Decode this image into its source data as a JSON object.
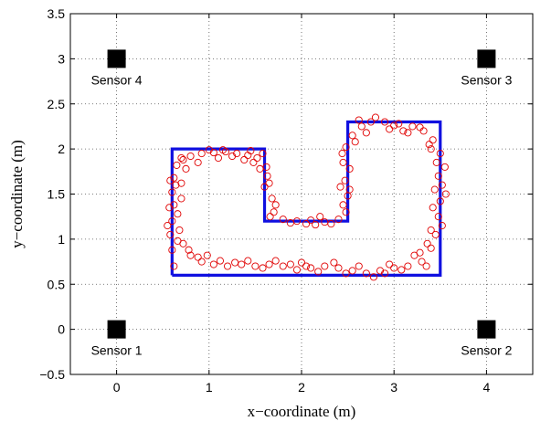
{
  "chart_data": {
    "type": "scatter",
    "title": "",
    "xlabel": "x−coordinate (m)",
    "ylabel": "y−coordinate (m)",
    "xlim": [
      -0.5,
      4.5
    ],
    "ylim": [
      -0.5,
      3.5
    ],
    "xticks": [
      0,
      1,
      2,
      3,
      4
    ],
    "yticks": [
      -0.5,
      0,
      0.5,
      1,
      1.5,
      2,
      2.5,
      3,
      3.5
    ],
    "xtick_labels": [
      "0",
      "1",
      "2",
      "3",
      "4"
    ],
    "ytick_labels": [
      "−0.5",
      "0",
      "0.5",
      "1",
      "1.5",
      "2",
      "2.5",
      "3",
      "3.5"
    ],
    "grid": true,
    "sensors": [
      {
        "label": "Sensor 1",
        "x": 0,
        "y": 0
      },
      {
        "label": "Sensor 2",
        "x": 4,
        "y": 0
      },
      {
        "label": "Sensor 3",
        "x": 4,
        "y": 3
      },
      {
        "label": "Sensor 4",
        "x": 0,
        "y": 3
      }
    ],
    "path": {
      "color": "#1010e0",
      "points": [
        [
          0.6,
          0.6
        ],
        [
          3.5,
          0.6
        ],
        [
          3.5,
          2.3
        ],
        [
          2.5,
          2.3
        ],
        [
          2.5,
          1.2
        ],
        [
          1.6,
          1.2
        ],
        [
          1.6,
          2.0
        ],
        [
          0.6,
          2.0
        ],
        [
          0.6,
          0.6
        ]
      ]
    },
    "estimates": {
      "color": "#e00000",
      "points": [
        [
          0.62,
          0.7
        ],
        [
          0.6,
          0.88
        ],
        [
          0.58,
          1.05
        ],
        [
          0.6,
          1.2
        ],
        [
          0.57,
          1.35
        ],
        [
          0.6,
          1.52
        ],
        [
          0.62,
          1.68
        ],
        [
          0.65,
          1.82
        ],
        [
          0.72,
          1.88
        ],
        [
          0.8,
          1.92
        ],
        [
          0.92,
          1.95
        ],
        [
          1.05,
          1.96
        ],
        [
          1.18,
          1.97
        ],
        [
          1.3,
          1.95
        ],
        [
          1.42,
          1.93
        ],
        [
          1.52,
          1.9
        ],
        [
          1.58,
          1.95
        ],
        [
          1.62,
          1.8
        ],
        [
          1.65,
          1.62
        ],
        [
          1.68,
          1.45
        ],
        [
          1.7,
          1.3
        ],
        [
          1.8,
          1.22
        ],
        [
          1.95,
          1.2
        ],
        [
          2.1,
          1.21
        ],
        [
          2.25,
          1.19
        ],
        [
          2.4,
          1.22
        ],
        [
          2.48,
          1.3
        ],
        [
          2.5,
          1.48
        ],
        [
          2.47,
          1.65
        ],
        [
          2.45,
          1.85
        ],
        [
          2.48,
          2.02
        ],
        [
          2.55,
          2.15
        ],
        [
          2.65,
          2.25
        ],
        [
          2.75,
          2.3
        ],
        [
          2.9,
          2.3
        ],
        [
          3.05,
          2.28
        ],
        [
          3.2,
          2.25
        ],
        [
          3.32,
          2.2
        ],
        [
          3.42,
          2.1
        ],
        [
          3.5,
          1.95
        ],
        [
          3.55,
          1.8
        ],
        [
          3.52,
          1.6
        ],
        [
          3.5,
          1.42
        ],
        [
          3.48,
          1.25
        ],
        [
          3.45,
          1.05
        ],
        [
          3.4,
          0.9
        ],
        [
          3.3,
          0.75
        ],
        [
          3.15,
          0.7
        ],
        [
          3.0,
          0.68
        ],
        [
          2.85,
          0.65
        ],
        [
          2.7,
          0.62
        ],
        [
          2.55,
          0.65
        ],
        [
          2.4,
          0.68
        ],
        [
          2.25,
          0.7
        ],
        [
          2.1,
          0.68
        ],
        [
          1.95,
          0.66
        ],
        [
          1.8,
          0.7
        ],
        [
          1.65,
          0.72
        ],
        [
          1.5,
          0.7
        ],
        [
          1.35,
          0.72
        ],
        [
          1.2,
          0.7
        ],
        [
          1.05,
          0.72
        ],
        [
          0.92,
          0.75
        ],
        [
          0.8,
          0.82
        ],
        [
          0.72,
          0.95
        ],
        [
          0.68,
          1.1
        ],
        [
          0.66,
          1.28
        ],
        [
          0.7,
          1.45
        ],
        [
          0.64,
          1.6
        ],
        [
          0.75,
          1.78
        ],
        [
          0.88,
          1.85
        ],
        [
          1.1,
          1.9
        ],
        [
          1.38,
          1.88
        ],
        [
          1.55,
          1.78
        ],
        [
          1.6,
          1.58
        ],
        [
          1.72,
          1.38
        ],
        [
          1.88,
          1.18
        ],
        [
          2.05,
          1.17
        ],
        [
          2.32,
          1.17
        ],
        [
          2.45,
          1.38
        ],
        [
          2.42,
          1.58
        ],
        [
          2.52,
          1.78
        ],
        [
          2.58,
          2.08
        ],
        [
          2.7,
          2.18
        ],
        [
          2.95,
          2.22
        ],
        [
          3.15,
          2.18
        ],
        [
          3.38,
          2.05
        ],
        [
          3.48,
          1.7
        ],
        [
          3.56,
          1.5
        ],
        [
          3.42,
          1.35
        ],
        [
          3.36,
          0.95
        ],
        [
          3.22,
          0.82
        ],
        [
          2.95,
          0.72
        ],
        [
          2.62,
          0.7
        ],
        [
          2.35,
          0.74
        ],
        [
          2.0,
          0.74
        ],
        [
          1.72,
          0.76
        ],
        [
          1.42,
          0.76
        ],
        [
          1.12,
          0.76
        ],
        [
          0.88,
          0.8
        ],
        [
          0.55,
          1.15
        ],
        [
          0.62,
          1.38
        ],
        [
          0.58,
          1.65
        ],
        [
          0.7,
          1.9
        ],
        [
          1.0,
          1.99
        ],
        [
          1.25,
          1.92
        ],
        [
          1.48,
          1.85
        ],
        [
          1.66,
          1.25
        ],
        [
          2.2,
          1.25
        ],
        [
          2.52,
          1.55
        ],
        [
          2.62,
          2.32
        ],
        [
          3.0,
          2.26
        ],
        [
          3.28,
          2.24
        ],
        [
          3.46,
          1.85
        ],
        [
          3.52,
          1.15
        ],
        [
          3.35,
          0.7
        ],
        [
          3.08,
          0.66
        ],
        [
          2.78,
          0.58
        ],
        [
          2.48,
          0.62
        ],
        [
          2.18,
          0.64
        ],
        [
          1.88,
          0.72
        ],
        [
          1.58,
          0.68
        ],
        [
          1.28,
          0.74
        ],
        [
          0.98,
          0.82
        ],
        [
          0.78,
          0.88
        ],
        [
          0.66,
          0.98
        ],
        [
          0.7,
          1.62
        ],
        [
          1.15,
          1.99
        ],
        [
          1.45,
          1.98
        ],
        [
          1.63,
          1.7
        ],
        [
          2.15,
          1.16
        ],
        [
          2.44,
          1.95
        ],
        [
          2.8,
          2.35
        ],
        [
          3.1,
          2.2
        ],
        [
          3.4,
          2.0
        ],
        [
          3.44,
          1.55
        ],
        [
          3.4,
          1.1
        ],
        [
          3.28,
          0.85
        ],
        [
          2.9,
          0.62
        ],
        [
          2.05,
          0.7
        ]
      ]
    }
  }
}
